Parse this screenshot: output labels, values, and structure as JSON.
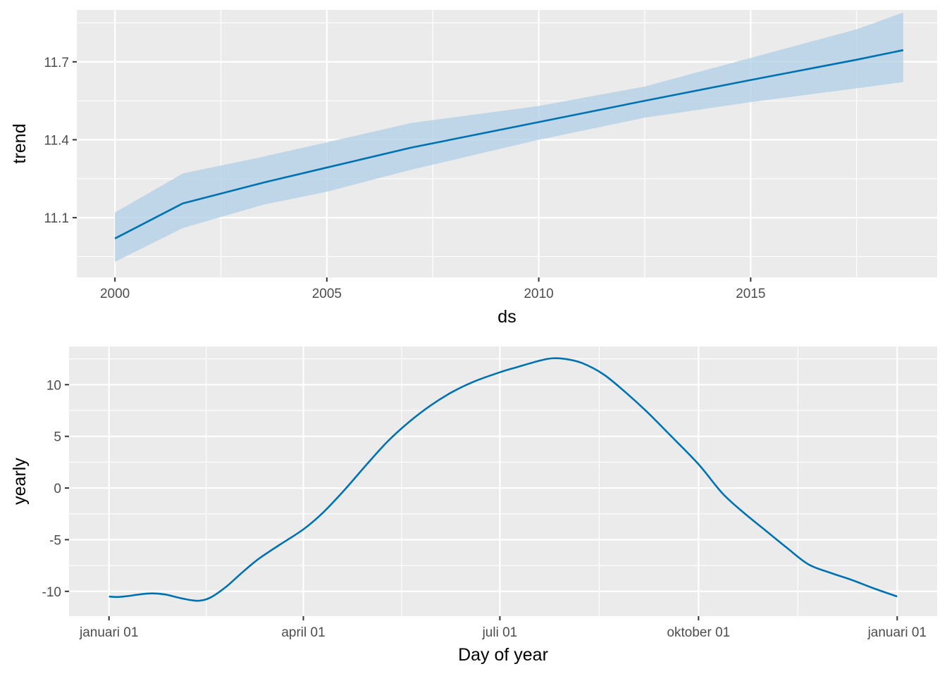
{
  "colors": {
    "panel_bg": "#EBEBEB",
    "grid_major": "#FFFFFF",
    "line": "#0072B2",
    "band": "#B3D1E6",
    "tick_text": "#4D4D4D",
    "tick_mark": "#333333"
  },
  "chart_data": [
    {
      "type": "line",
      "title": "",
      "xlabel": "ds",
      "ylabel": "trend",
      "x_ticks": [
        {
          "value": 2000,
          "label": "2000"
        },
        {
          "value": 2005,
          "label": "2005"
        },
        {
          "value": 2010,
          "label": "2010"
        },
        {
          "value": 2015,
          "label": "2015"
        }
      ],
      "y_ticks": [
        {
          "value": 11.1,
          "label": "11.1"
        },
        {
          "value": 11.4,
          "label": "11.4"
        },
        {
          "value": 11.7,
          "label": "11.7"
        }
      ],
      "xlim": [
        1999.1,
        2019.4
      ],
      "ylim": [
        10.87,
        11.9
      ],
      "grid": true,
      "uncertainty_band": true,
      "series": [
        {
          "x": [
            2000.0,
            2001.6,
            2003.5,
            2005.0,
            2007.0,
            2010.0,
            2012.5,
            2015.0,
            2017.5,
            2018.6
          ],
          "y": [
            11.02,
            11.155,
            11.235,
            11.293,
            11.37,
            11.468,
            11.55,
            11.63,
            11.708,
            11.745
          ],
          "lower": [
            10.93,
            11.06,
            11.15,
            11.2,
            11.285,
            11.4,
            11.485,
            11.545,
            11.598,
            11.622
          ],
          "upper": [
            11.12,
            11.27,
            11.335,
            11.39,
            11.465,
            11.53,
            11.605,
            11.715,
            11.825,
            11.89
          ]
        }
      ]
    },
    {
      "type": "line",
      "title": "",
      "xlabel": "Day of year",
      "ylabel": "yearly",
      "x_ticks": [
        {
          "value": 1,
          "label": "januari 01"
        },
        {
          "value": 91,
          "label": "april 01"
        },
        {
          "value": 182,
          "label": "juli 01"
        },
        {
          "value": 274,
          "label": "oktober 01"
        },
        {
          "value": 366,
          "label": "januari 01"
        }
      ],
      "y_ticks": [
        {
          "value": -10,
          "label": "-10"
        },
        {
          "value": -5,
          "label": "-5"
        },
        {
          "value": 0,
          "label": "0"
        },
        {
          "value": 5,
          "label": "5"
        },
        {
          "value": 10,
          "label": "10"
        }
      ],
      "xlim": [
        -17.5,
        384.5
      ],
      "ylim": [
        -12.4,
        13.7
      ],
      "grid": true,
      "uncertainty_band": false,
      "series": [
        {
          "x": [
            1,
            5,
            10,
            15,
            21,
            27,
            33,
            39,
            43,
            48,
            55,
            62,
            70,
            80,
            91,
            100,
            110,
            120,
            130,
            140,
            150,
            160,
            170,
            182,
            190,
            200,
            206,
            212,
            220,
            230,
            240,
            250,
            260,
            274,
            285,
            295,
            305,
            315,
            325,
            335,
            345,
            355,
            366
          ],
          "y": [
            -10.5,
            -10.55,
            -10.45,
            -10.3,
            -10.2,
            -10.3,
            -10.6,
            -10.85,
            -10.9,
            -10.6,
            -9.6,
            -8.3,
            -6.9,
            -5.5,
            -4.0,
            -2.4,
            -0.2,
            2.2,
            4.5,
            6.4,
            8.0,
            9.3,
            10.3,
            11.2,
            11.7,
            12.3,
            12.55,
            12.5,
            12.1,
            11.0,
            9.3,
            7.4,
            5.3,
            2.3,
            -0.5,
            -2.4,
            -4.1,
            -5.8,
            -7.4,
            -8.2,
            -8.9,
            -9.7,
            -10.5
          ]
        }
      ]
    }
  ]
}
